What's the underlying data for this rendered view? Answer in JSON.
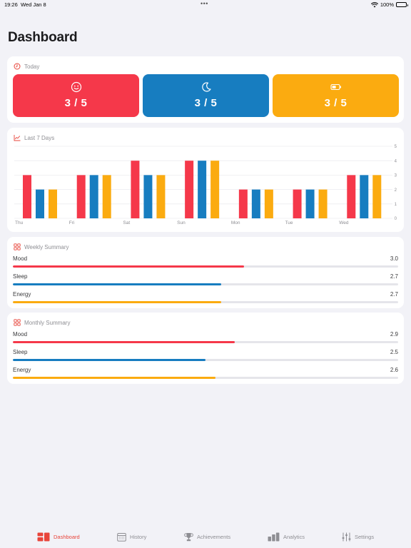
{
  "status_bar": {
    "time": "19:26",
    "date": "Wed Jan 8",
    "battery": "100%"
  },
  "page_title": "Dashboard",
  "colors": {
    "mood": "#f5384a",
    "sleep": "#177dc0",
    "energy": "#fbab10",
    "accent": "#e8443a"
  },
  "today": {
    "title": "Today",
    "tiles": [
      {
        "name": "mood",
        "icon": "smiley-face-icon",
        "value": "3 / 5"
      },
      {
        "name": "sleep",
        "icon": "moon-icon",
        "value": "3 / 5"
      },
      {
        "name": "energy",
        "icon": "battery-icon",
        "value": "3 / 5"
      }
    ]
  },
  "last7": {
    "title": "Last 7 Days"
  },
  "chart_data": {
    "type": "bar",
    "categories": [
      "Thu",
      "Fri",
      "Sat",
      "Sun",
      "Mon",
      "Tue",
      "Wed"
    ],
    "series": [
      {
        "values": [
          3,
          3,
          4,
          4,
          2,
          2,
          3
        ]
      },
      {
        "values": [
          2,
          3,
          3,
          4,
          2,
          2,
          3
        ]
      },
      {
        "values": [
          2,
          3,
          3,
          4,
          2,
          2,
          3
        ]
      }
    ],
    "yticks": [
      "0",
      "1",
      "2",
      "3",
      "4",
      "5"
    ],
    "ylim": [
      0,
      5
    ],
    "grid": true
  },
  "weekly": {
    "title": "Weekly Summary",
    "metrics": [
      {
        "label": "Mood",
        "value": "3.0",
        "fraction": 0.6
      },
      {
        "label": "Sleep",
        "value": "2.7",
        "fraction": 0.54
      },
      {
        "label": "Energy",
        "value": "2.7",
        "fraction": 0.54
      }
    ]
  },
  "monthly": {
    "title": "Monthly Summary",
    "metrics": [
      {
        "label": "Mood",
        "value": "2.9",
        "fraction": 0.575
      },
      {
        "label": "Sleep",
        "value": "2.5",
        "fraction": 0.5
      },
      {
        "label": "Energy",
        "value": "2.6",
        "fraction": 0.525
      }
    ]
  },
  "tabs": [
    {
      "label": "Dashboard",
      "icon": "dashboard-icon",
      "active": true
    },
    {
      "label": "History",
      "icon": "calendar-icon",
      "active": false
    },
    {
      "label": "Achievements",
      "icon": "trophy-icon",
      "active": false
    },
    {
      "label": "Analytics",
      "icon": "bar-chart-icon",
      "active": false
    },
    {
      "label": "Settings",
      "icon": "sliders-icon",
      "active": false
    }
  ]
}
